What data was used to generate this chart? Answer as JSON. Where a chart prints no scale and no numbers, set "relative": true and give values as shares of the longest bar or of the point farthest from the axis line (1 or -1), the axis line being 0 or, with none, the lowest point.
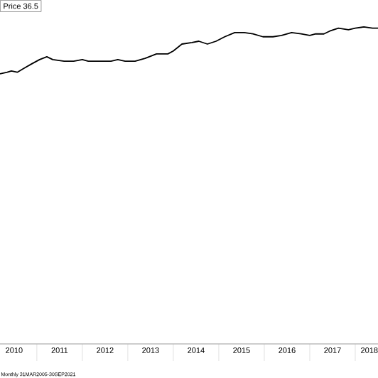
{
  "chart_data": {
    "type": "line",
    "relative": true,
    "x": [
      2010.19,
      2010.35,
      2010.44,
      2010.57,
      2010.72,
      2010.88,
      2011.06,
      2011.22,
      2011.35,
      2011.6,
      2011.81,
      2012.0,
      2012.13,
      2012.38,
      2012.63,
      2012.78,
      2012.94,
      2013.16,
      2013.38,
      2013.63,
      2013.88,
      2014.0,
      2014.19,
      2014.41,
      2014.56,
      2014.75,
      2014.94,
      2015.13,
      2015.35,
      2015.56,
      2015.75,
      2015.97,
      2016.19,
      2016.38,
      2016.6,
      2016.81,
      2017.0,
      2017.13,
      2017.31,
      2017.44,
      2017.63,
      2017.85,
      2018.0,
      2018.19,
      2018.38,
      2018.5
    ],
    "series": [
      {
        "color": "#000000",
        "values": [
          0.852,
          0.857,
          0.861,
          0.857,
          0.87,
          0.883,
          0.897,
          0.906,
          0.897,
          0.892,
          0.892,
          0.897,
          0.892,
          0.892,
          0.892,
          0.897,
          0.892,
          0.892,
          0.901,
          0.915,
          0.915,
          0.924,
          0.946,
          0.951,
          0.955,
          0.946,
          0.955,
          0.969,
          0.982,
          0.982,
          0.978,
          0.969,
          0.969,
          0.973,
          0.982,
          0.978,
          0.973,
          0.978,
          0.978,
          0.987,
          0.996,
          0.991,
          0.996,
          1.0,
          0.996,
          0.996
        ]
      }
    ],
    "xlim": [
      2010.19,
      2018.5
    ],
    "xticks": [
      {
        "value": 2010.5,
        "label": "2010"
      },
      {
        "value": 2011.5,
        "label": "2011"
      },
      {
        "value": 2012.5,
        "label": "2012"
      },
      {
        "value": 2013.5,
        "label": "2013"
      },
      {
        "value": 2014.5,
        "label": "2014"
      },
      {
        "value": 2015.5,
        "label": "2015"
      },
      {
        "value": 2016.5,
        "label": "2016"
      },
      {
        "value": 2017.5,
        "label": "2017"
      },
      {
        "value": 2018.5,
        "label": "2018"
      },
      {
        "value": 2011,
        "label": null
      },
      {
        "value": 2012,
        "label": null
      },
      {
        "value": 2013,
        "label": null
      },
      {
        "value": 2014,
        "label": null
      },
      {
        "value": 2015,
        "label": null
      },
      {
        "value": 2016,
        "label": null
      },
      {
        "value": 2017,
        "label": null
      },
      {
        "value": 2018,
        "label": null
      }
    ],
    "annotations": [
      "Price 36.5",
      "Monthly 31MAR2005-30SEP2021"
    ]
  }
}
